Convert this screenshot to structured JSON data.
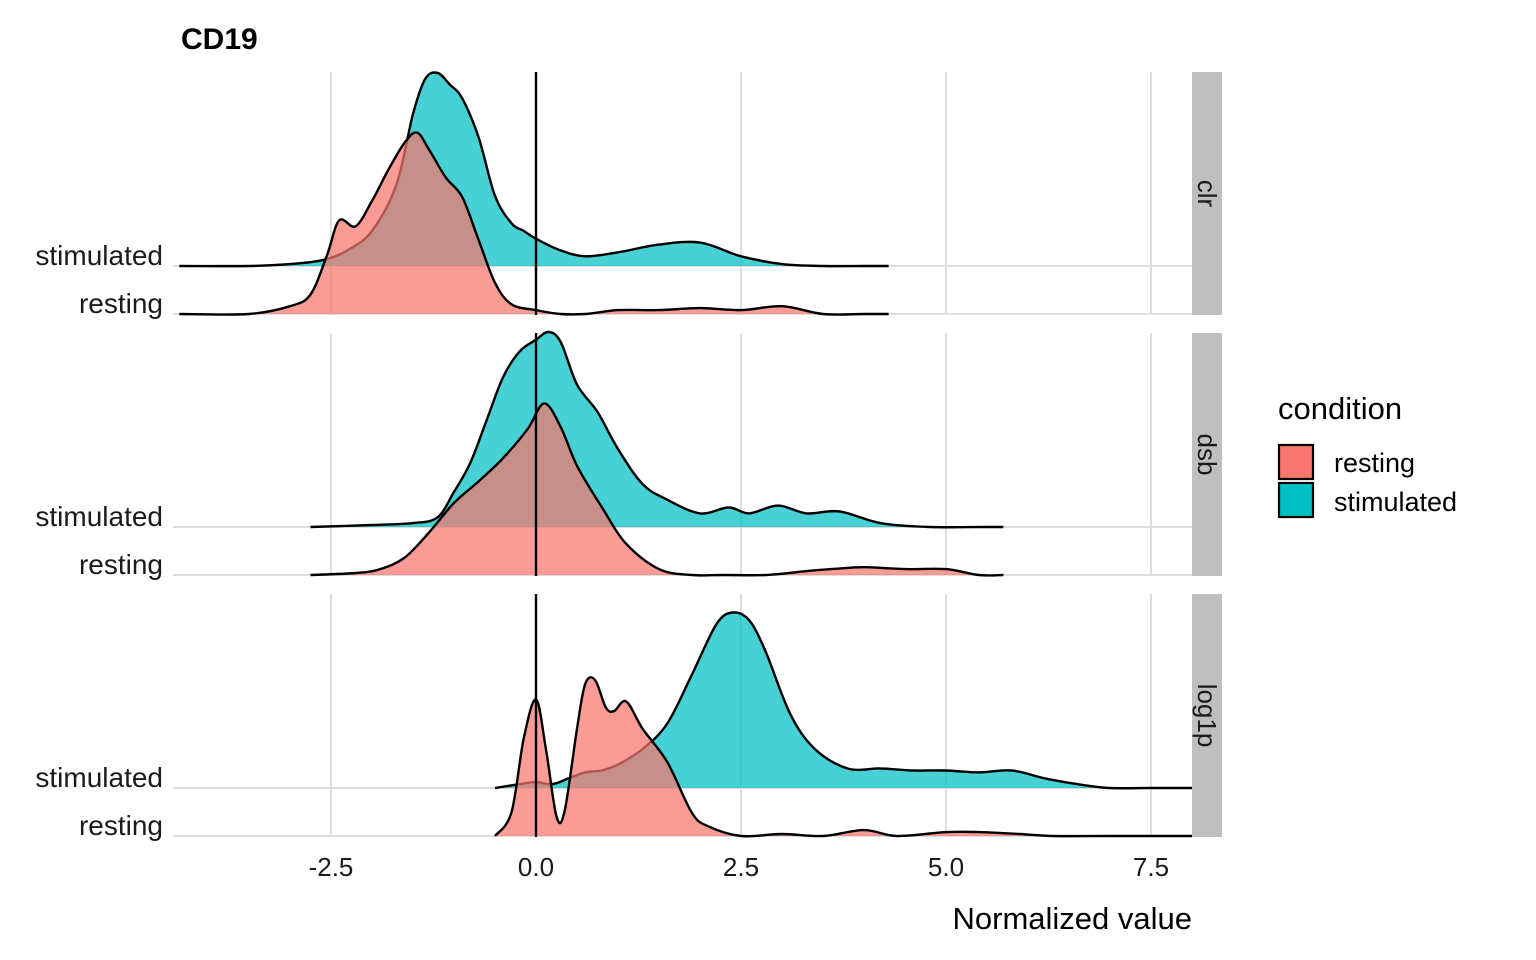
{
  "chart_data": {
    "type": "ridgeline-density",
    "title": "CD19",
    "xlabel": "Normalized value",
    "ylabel": "",
    "xlim": [
      -4.45,
      8.0
    ],
    "x_ticks": [
      -2.5,
      0.0,
      2.5,
      5.0,
      7.5
    ],
    "x_tick_labels": [
      "-2.5",
      "0.0",
      "2.5",
      "5.0",
      "7.5"
    ],
    "grid": true,
    "reference_line_x": 0.0,
    "legend": {
      "title": "condition",
      "position": "right",
      "entries": [
        {
          "label": "resting",
          "color": "#F8766D"
        },
        {
          "label": "stimulated",
          "color": "#00BFC4"
        }
      ]
    },
    "rows": [
      "stimulated",
      "resting"
    ],
    "panels": [
      {
        "strip_label": "clr",
        "series": [
          {
            "name": "stimulated",
            "color": "#00BFC4",
            "x": [
              -4.35,
              -3.5,
              -3.0,
              -2.6,
              -2.3,
              -2.0,
              -1.7,
              -1.5,
              -1.35,
              -1.2,
              -1.05,
              -0.9,
              -0.7,
              -0.5,
              -0.3,
              -0.15,
              0.0,
              0.3,
              0.6,
              1.0,
              1.5,
              2.0,
              2.5,
              3.0,
              3.5,
              4.0,
              4.3
            ],
            "density": [
              0.0,
              0.0,
              0.01,
              0.03,
              0.08,
              0.18,
              0.42,
              0.78,
              0.96,
              0.99,
              0.93,
              0.86,
              0.66,
              0.36,
              0.22,
              0.18,
              0.14,
              0.08,
              0.05,
              0.07,
              0.11,
              0.12,
              0.05,
              0.01,
              0.0,
              0.0,
              0.0
            ]
          },
          {
            "name": "resting",
            "color": "#F8766D",
            "x": [
              -4.35,
              -3.5,
              -3.0,
              -2.75,
              -2.55,
              -2.4,
              -2.2,
              -2.0,
              -1.8,
              -1.6,
              -1.45,
              -1.3,
              -1.1,
              -0.9,
              -0.7,
              -0.5,
              -0.3,
              0.0,
              0.3,
              0.6,
              1.0,
              1.5,
              2.0,
              2.5,
              3.0,
              3.5,
              4.0,
              4.3
            ],
            "density": [
              0.0,
              0.0,
              0.04,
              0.1,
              0.3,
              0.48,
              0.45,
              0.58,
              0.74,
              0.88,
              0.93,
              0.84,
              0.7,
              0.6,
              0.38,
              0.16,
              0.05,
              0.02,
              0.0,
              0.0,
              0.02,
              0.02,
              0.03,
              0.02,
              0.04,
              0.0,
              0.0,
              0.0
            ]
          }
        ]
      },
      {
        "strip_label": "dsb",
        "series": [
          {
            "name": "stimulated",
            "color": "#00BFC4",
            "x": [
              -2.75,
              -2.0,
              -1.5,
              -1.2,
              -1.0,
              -0.8,
              -0.6,
              -0.4,
              -0.2,
              0.0,
              0.15,
              0.3,
              0.5,
              0.75,
              1.0,
              1.3,
              1.6,
              2.0,
              2.35,
              2.6,
              2.95,
              3.3,
              3.7,
              4.2,
              4.8,
              5.5,
              5.7
            ],
            "density": [
              0.0,
              0.01,
              0.02,
              0.05,
              0.18,
              0.33,
              0.55,
              0.77,
              0.9,
              0.96,
              1.0,
              0.95,
              0.73,
              0.59,
              0.4,
              0.22,
              0.14,
              0.07,
              0.1,
              0.07,
              0.11,
              0.07,
              0.08,
              0.02,
              0.0,
              0.0,
              0.0
            ]
          },
          {
            "name": "resting",
            "color": "#F8766D",
            "x": [
              -2.75,
              -2.2,
              -1.9,
              -1.6,
              -1.3,
              -1.0,
              -0.7,
              -0.4,
              -0.1,
              0.1,
              0.3,
              0.5,
              0.8,
              1.1,
              1.5,
              1.9,
              2.3,
              2.8,
              3.3,
              3.6,
              4.0,
              4.5,
              5.0,
              5.4,
              5.7
            ],
            "density": [
              0.0,
              0.01,
              0.03,
              0.09,
              0.22,
              0.37,
              0.48,
              0.6,
              0.75,
              0.88,
              0.76,
              0.56,
              0.35,
              0.16,
              0.03,
              0.0,
              0.0,
              0.0,
              0.02,
              0.03,
              0.04,
              0.03,
              0.03,
              0.0,
              0.0
            ]
          }
        ]
      },
      {
        "strip_label": "log1p",
        "series": [
          {
            "name": "stimulated",
            "color": "#00BFC4",
            "x": [
              -0.5,
              -0.2,
              0.0,
              0.2,
              0.4,
              0.6,
              0.8,
              1.0,
              1.3,
              1.6,
              1.9,
              2.2,
              2.4,
              2.6,
              2.8,
              3.1,
              3.4,
              3.8,
              4.2,
              4.6,
              5.0,
              5.4,
              5.8,
              6.2,
              6.6,
              7.0,
              7.5,
              8.0
            ],
            "density": [
              0.0,
              0.02,
              0.03,
              0.02,
              0.05,
              0.08,
              0.09,
              0.12,
              0.2,
              0.33,
              0.58,
              0.84,
              0.9,
              0.86,
              0.7,
              0.38,
              0.2,
              0.1,
              0.1,
              0.09,
              0.09,
              0.08,
              0.09,
              0.05,
              0.02,
              0.0,
              0.0,
              0.0
            ]
          },
          {
            "name": "resting",
            "color": "#F8766D",
            "x": [
              -0.5,
              -0.3,
              -0.15,
              0.0,
              0.12,
              0.25,
              0.35,
              0.5,
              0.6,
              0.72,
              0.85,
              0.95,
              1.1,
              1.3,
              1.6,
              1.9,
              2.1,
              2.5,
              3.0,
              3.5,
              4.0,
              4.4,
              5.0,
              5.4,
              5.9,
              6.3,
              7.0,
              8.0
            ],
            "density": [
              0.0,
              0.12,
              0.5,
              0.7,
              0.45,
              0.1,
              0.13,
              0.55,
              0.78,
              0.8,
              0.66,
              0.64,
              0.69,
              0.55,
              0.38,
              0.12,
              0.05,
              0.0,
              0.01,
              0.0,
              0.03,
              0.0,
              0.02,
              0.02,
              0.01,
              0.0,
              0.0,
              0.0
            ]
          }
        ]
      }
    ]
  }
}
